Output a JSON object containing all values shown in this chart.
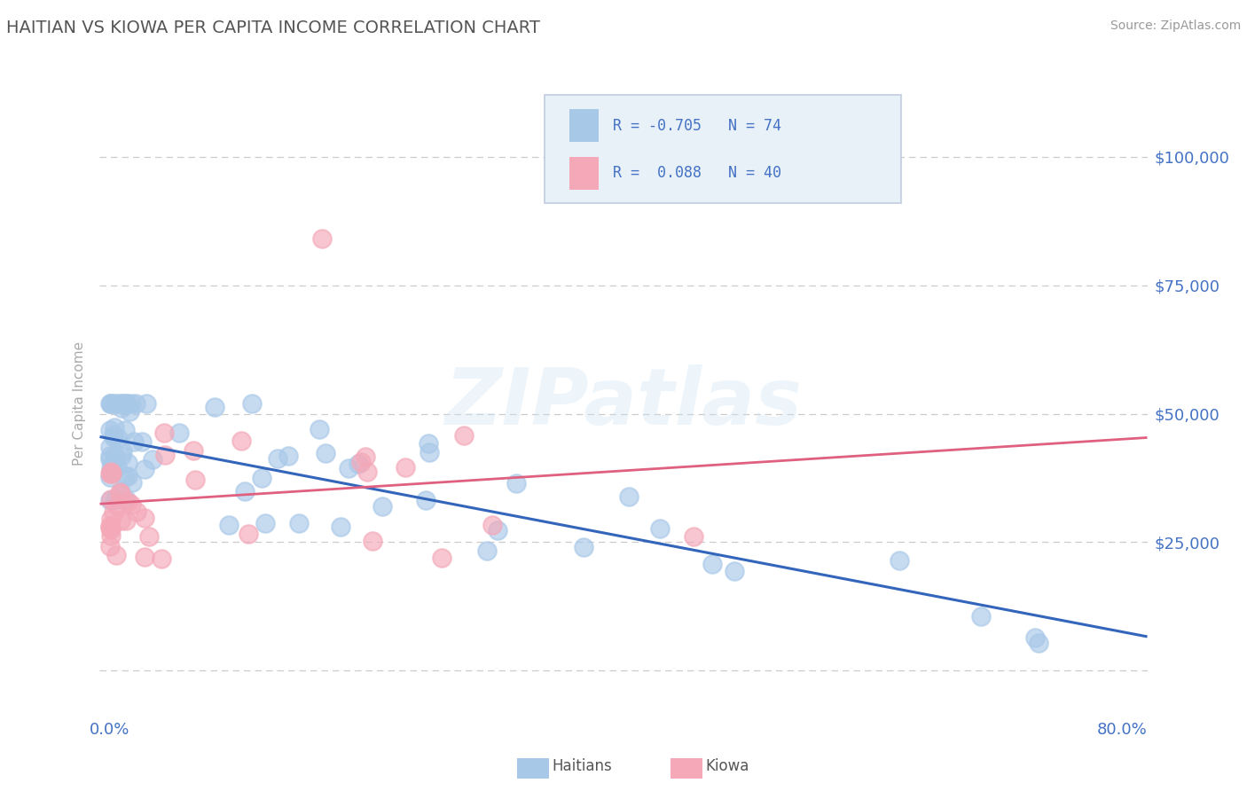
{
  "title": "HAITIAN VS KIOWA PER CAPITA INCOME CORRELATION CHART",
  "source": "Source: ZipAtlas.com",
  "ylabel": "Per Capita Income",
  "xlim": [
    -0.008,
    0.82
  ],
  "ylim": [
    -8000,
    112000
  ],
  "ytick_vals": [
    0,
    25000,
    50000,
    75000,
    100000
  ],
  "ytick_labels_right": [
    "",
    "$25,000",
    "$50,000",
    "$75,000",
    "$100,000"
  ],
  "xtick_vals": [
    0.0,
    0.8
  ],
  "xtick_labels": [
    "0.0%",
    "80.0%"
  ],
  "title_color": "#555555",
  "axis_label_color": "#4472c4",
  "background_color": "#ffffff",
  "grid_color": "#cccccc",
  "haitians_dot_color": "#a8c8e8",
  "kiowa_dot_color": "#f4a8b8",
  "haitians_line_color": "#3366bb",
  "kiowa_line_color": "#e06080",
  "haitian_R": -0.705,
  "haitian_N": 74,
  "kiowa_R": 0.088,
  "kiowa_N": 40,
  "legend_box_color": "#e8f0f8",
  "legend_border_color": "#c0cce0"
}
